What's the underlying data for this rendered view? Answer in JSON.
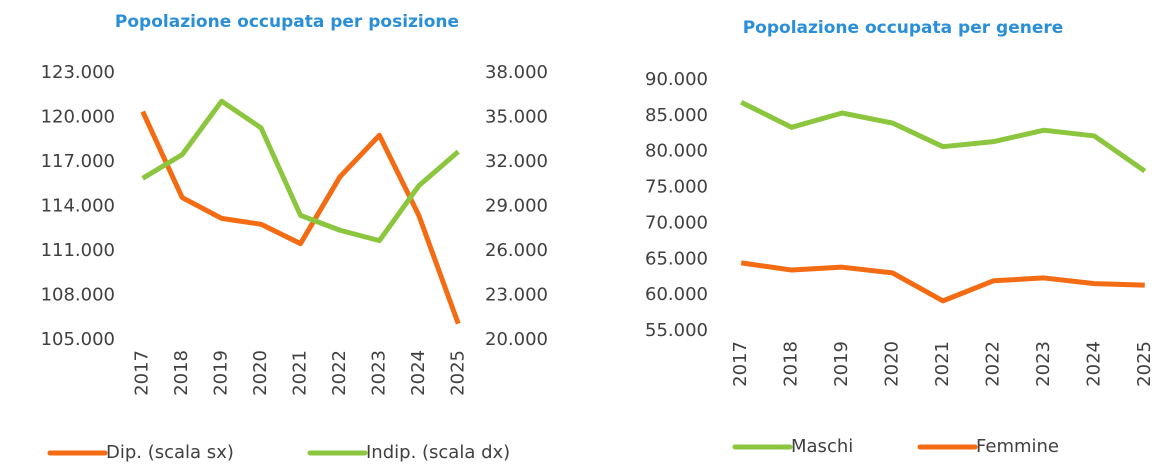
{
  "chart_data": [
    {
      "type": "line",
      "title": "Popolazione occupata per posizione",
      "categories": [
        "2017",
        "2018",
        "2019",
        "2020",
        "2021",
        "2022",
        "2023",
        "2024",
        "2025"
      ],
      "series": [
        {
          "name": "Dip. (scala sx)",
          "color": "#f36b12",
          "axis": "y",
          "values": [
            120400,
            114600,
            113200,
            112800,
            111500,
            116000,
            118800,
            113400,
            106100
          ]
        },
        {
          "name": "Indip. (scala dx)",
          "color": "#8cc63f",
          "axis": "y2",
          "values": [
            30900,
            32500,
            36100,
            34300,
            28400,
            27400,
            26700,
            30400,
            32700
          ]
        }
      ],
      "ylim": [
        105000,
        123000
      ],
      "yticks": [
        {
          "value": 105000,
          "label": "105.000"
        },
        {
          "value": 108000,
          "label": "108.000"
        },
        {
          "value": 111000,
          "label": "111.000"
        },
        {
          "value": 114000,
          "label": "114.000"
        },
        {
          "value": 117000,
          "label": "117.000"
        },
        {
          "value": 120000,
          "label": "120.000"
        },
        {
          "value": 123000,
          "label": "123.000"
        }
      ],
      "y2lim": [
        20000,
        38000
      ],
      "y2ticks": [
        {
          "value": 20000,
          "label": "20.000"
        },
        {
          "value": 23000,
          "label": "23.000"
        },
        {
          "value": 26000,
          "label": "26.000"
        },
        {
          "value": 29000,
          "label": "29.000"
        },
        {
          "value": 32000,
          "label": "32.000"
        },
        {
          "value": 35000,
          "label": "35.000"
        },
        {
          "value": 38000,
          "label": "38.000"
        }
      ]
    },
    {
      "type": "line",
      "title": "Popolazione occupata per genere",
      "categories": [
        "2017",
        "2018",
        "2019",
        "2020",
        "2021",
        "2022",
        "2023",
        "2024",
        "2025"
      ],
      "series": [
        {
          "name": "Maschi",
          "color": "#8cc63f",
          "values": [
            86900,
            83400,
            85400,
            84000,
            80700,
            81400,
            83000,
            82200,
            77300
          ]
        },
        {
          "name": "Femmine",
          "color": "#f36b12",
          "values": [
            64500,
            63500,
            63900,
            63100,
            59200,
            62000,
            62400,
            61600,
            61400
          ]
        }
      ],
      "ylim": [
        55000,
        90000
      ],
      "yticks": [
        {
          "value": 55000,
          "label": "55.000"
        },
        {
          "value": 60000,
          "label": "60.000"
        },
        {
          "value": 65000,
          "label": "65.000"
        },
        {
          "value": 70000,
          "label": "70.000"
        },
        {
          "value": 75000,
          "label": "75.000"
        },
        {
          "value": 80000,
          "label": "80.000"
        },
        {
          "value": 85000,
          "label": "85.000"
        },
        {
          "value": 90000,
          "label": "90.000"
        }
      ]
    }
  ]
}
